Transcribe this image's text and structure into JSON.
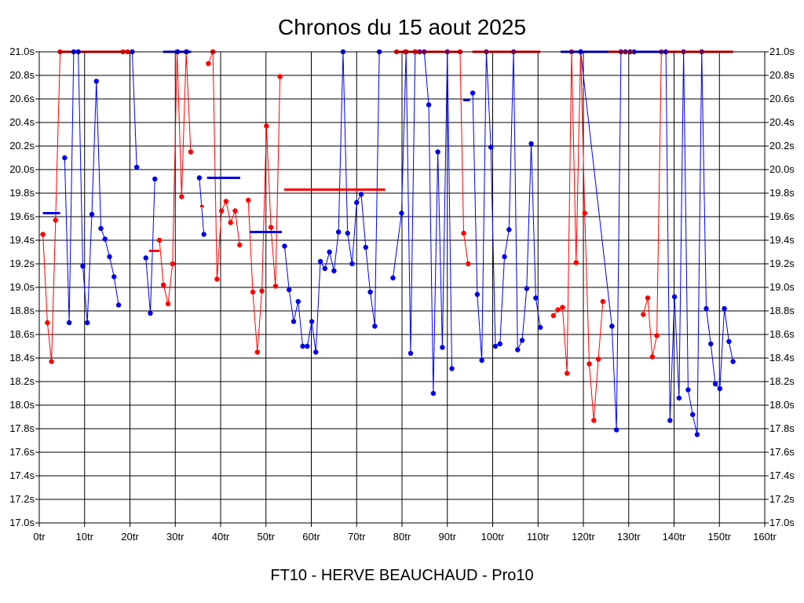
{
  "chart_data": {
    "type": "line",
    "title": "Chronos du 15 aout 2025",
    "xlabel": "FT10 - HERVE BEAUCHAUD - Pro10",
    "ylabel": "",
    "xlim": [
      0,
      160
    ],
    "ylim": [
      17.0,
      21.0
    ],
    "x_ticks": [
      {
        "value": 0,
        "label": "0tr"
      },
      {
        "value": 10,
        "label": "10tr"
      },
      {
        "value": 20,
        "label": "20tr"
      },
      {
        "value": 30,
        "label": "30tr"
      },
      {
        "value": 40,
        "label": "40tr"
      },
      {
        "value": 50,
        "label": "50tr"
      },
      {
        "value": 60,
        "label": "60tr"
      },
      {
        "value": 70,
        "label": "70tr"
      },
      {
        "value": 80,
        "label": "80tr"
      },
      {
        "value": 90,
        "label": "90tr"
      },
      {
        "value": 100,
        "label": "100tr"
      },
      {
        "value": 110,
        "label": "110tr"
      },
      {
        "value": 120,
        "label": "120tr"
      },
      {
        "value": 130,
        "label": "130tr"
      },
      {
        "value": 140,
        "label": "140tr"
      },
      {
        "value": 150,
        "label": "150tr"
      },
      {
        "value": 160,
        "label": "160tr"
      }
    ],
    "y_ticks": [
      {
        "value": 17.0,
        "label": "17.0s"
      },
      {
        "value": 17.2,
        "label": "17.2s"
      },
      {
        "value": 17.4,
        "label": "17.4s"
      },
      {
        "value": 17.6,
        "label": "17.6s"
      },
      {
        "value": 17.8,
        "label": "17.8s"
      },
      {
        "value": 18.0,
        "label": "18.0s"
      },
      {
        "value": 18.2,
        "label": "18.2s"
      },
      {
        "value": 18.4,
        "label": "18.4s"
      },
      {
        "value": 18.6,
        "label": "18.6s"
      },
      {
        "value": 18.8,
        "label": "18.8s"
      },
      {
        "value": 19.0,
        "label": "19.0s"
      },
      {
        "value": 19.2,
        "label": "19.2s"
      },
      {
        "value": 19.4,
        "label": "19.4s"
      },
      {
        "value": 19.6,
        "label": "19.6s"
      },
      {
        "value": 19.8,
        "label": "19.8s"
      },
      {
        "value": 20.0,
        "label": "20.0s"
      },
      {
        "value": 20.2,
        "label": "20.2s"
      },
      {
        "value": 20.4,
        "label": "20.4s"
      },
      {
        "value": 20.6,
        "label": "20.6s"
      },
      {
        "value": 20.8,
        "label": "20.8s"
      },
      {
        "value": 21.0,
        "label": "21.0s"
      }
    ],
    "grid": true,
    "colors": {
      "red": "#ff0000",
      "blue": "#0000ee",
      "grid": "#000000"
    },
    "series": [
      {
        "color": "red",
        "points": [
          [
            0.8,
            19.45
          ],
          [
            1.8,
            18.7
          ],
          [
            2.7,
            18.37
          ],
          [
            3.6,
            19.57
          ],
          [
            4.6,
            21.0
          ]
        ],
        "avg": [
          [
            4.8,
            18.6,
            21.0
          ]
        ]
      },
      {
        "color": "blue",
        "points": [
          [
            5.6,
            20.1
          ],
          [
            6.6,
            18.7
          ],
          [
            7.6,
            21.0
          ],
          [
            8.6,
            21.0
          ],
          [
            9.6,
            19.18
          ],
          [
            10.6,
            18.7
          ],
          [
            11.6,
            19.62
          ],
          [
            12.6,
            20.75
          ],
          [
            13.6,
            19.5
          ],
          [
            14.5,
            19.41
          ],
          [
            15.5,
            19.26
          ],
          [
            16.5,
            19.09
          ],
          [
            17.5,
            18.85
          ]
        ],
        "avg": [
          [
            0.8,
            4.6,
            19.63
          ]
        ]
      },
      {
        "color": "red",
        "points": [
          [
            18.5,
            21.0
          ],
          [
            19.5,
            21.0
          ]
        ],
        "avg": []
      },
      {
        "color": "blue",
        "points": [
          [
            20.5,
            21.0
          ],
          [
            21.5,
            20.02
          ]
        ],
        "avg": []
      },
      {
        "color": "blue",
        "points": [
          [
            23.5,
            19.25
          ],
          [
            24.5,
            18.78
          ],
          [
            25.5,
            19.92
          ]
        ],
        "avg": []
      },
      {
        "color": "red",
        "points": [
          [
            26.5,
            19.4
          ],
          [
            27.4,
            19.02
          ],
          [
            28.4,
            18.86
          ],
          [
            29.4,
            19.2
          ],
          [
            30.4,
            21.0
          ],
          [
            31.4,
            19.77
          ],
          [
            32.4,
            21.0
          ],
          [
            33.4,
            20.15
          ]
        ],
        "avg": [
          [
            24.2,
            26.5,
            19.31
          ]
        ]
      },
      {
        "color": "blue",
        "points": [
          [
            30.5,
            21.0
          ],
          [
            32.5,
            21.0
          ]
        ],
        "avg": [
          [
            27.3,
            33.5,
            21.0
          ]
        ]
      },
      {
        "color": "blue",
        "points": [
          [
            35.3,
            19.93
          ],
          [
            36.3,
            19.45
          ]
        ],
        "avg": []
      },
      {
        "color": "red",
        "points": [
          [
            37.3,
            20.9
          ],
          [
            38.3,
            21.0
          ],
          [
            39.2,
            19.07
          ],
          [
            40.2,
            19.65
          ],
          [
            41.2,
            19.73
          ],
          [
            42.2,
            19.55
          ],
          [
            43.2,
            19.65
          ],
          [
            44.2,
            19.36
          ]
        ],
        "avg": [
          [
            35.5,
            36.3,
            19.69
          ]
        ]
      },
      {
        "color": "blue",
        "points": [],
        "avg": [
          [
            37.0,
            44.3,
            19.93
          ]
        ]
      },
      {
        "color": "red",
        "points": [
          [
            46.1,
            19.74
          ],
          [
            47.1,
            18.96
          ],
          [
            48.1,
            18.45
          ],
          [
            49.1,
            18.97
          ],
          [
            50.1,
            20.37
          ],
          [
            51.1,
            19.51
          ],
          [
            52.1,
            19.01
          ],
          [
            53.1,
            20.79
          ]
        ],
        "avg": []
      },
      {
        "color": "blue",
        "points": [
          [
            54.1,
            19.35
          ],
          [
            55.1,
            18.98
          ],
          [
            56.1,
            18.71
          ],
          [
            57.1,
            18.88
          ],
          [
            58.1,
            18.5
          ],
          [
            59.1,
            18.5
          ],
          [
            60.1,
            18.71
          ],
          [
            61.0,
            18.45
          ],
          [
            62.0,
            19.22
          ],
          [
            63.0,
            19.16
          ],
          [
            64.0,
            19.3
          ],
          [
            65.0,
            19.14
          ],
          [
            66.0,
            19.47
          ],
          [
            67.0,
            21.0
          ],
          [
            68.0,
            19.46
          ],
          [
            69.0,
            19.2
          ],
          [
            70.0,
            19.72
          ],
          [
            71.0,
            19.79
          ],
          [
            72.0,
            19.34
          ],
          [
            73.0,
            18.96
          ],
          [
            74.0,
            18.67
          ],
          [
            75.0,
            21.0
          ]
        ],
        "avg": [
          [
            46.4,
            53.5,
            19.47
          ]
        ]
      },
      {
        "color": "red",
        "points": [],
        "avg": [
          [
            54.0,
            76.3,
            19.83
          ]
        ]
      },
      {
        "color": "blue",
        "points": [
          [
            78.0,
            19.08
          ],
          [
            79.9,
            19.63
          ],
          [
            80.9,
            21.0
          ],
          [
            81.9,
            18.44
          ],
          [
            82.9,
            21.0
          ],
          [
            83.9,
            21.0
          ],
          [
            84.9,
            21.0
          ],
          [
            85.9,
            20.55
          ],
          [
            86.9,
            18.1
          ],
          [
            87.9,
            20.15
          ],
          [
            88.9,
            18.49
          ],
          [
            90.0,
            21.0
          ],
          [
            91.0,
            18.31
          ]
        ],
        "avg": []
      },
      {
        "color": "red",
        "points": [
          [
            78.8,
            21.0
          ],
          [
            80.7,
            21.0
          ],
          [
            83.0,
            21.0
          ],
          [
            92.8,
            21.0
          ],
          [
            93.6,
            19.46
          ],
          [
            94.6,
            19.2
          ]
        ],
        "avg": [
          [
            78.5,
            93.0,
            21.0
          ]
        ]
      },
      {
        "color": "blue",
        "points": [
          [
            95.6,
            20.65
          ],
          [
            96.6,
            18.94
          ],
          [
            97.6,
            18.38
          ],
          [
            98.6,
            21.0
          ],
          [
            99.6,
            20.19
          ],
          [
            100.6,
            18.5
          ],
          [
            101.6,
            18.52
          ],
          [
            102.6,
            19.26
          ],
          [
            103.6,
            19.49
          ],
          [
            104.6,
            21.0
          ],
          [
            105.5,
            18.47
          ],
          [
            106.5,
            18.55
          ],
          [
            107.5,
            18.99
          ],
          [
            108.5,
            20.22
          ],
          [
            109.5,
            18.91
          ],
          [
            110.5,
            18.66
          ]
        ],
        "avg": [
          [
            93.5,
            95.0,
            20.59
          ]
        ]
      },
      {
        "color": "red",
        "points": [],
        "avg": [
          [
            95.5,
            110.5,
            21.0
          ]
        ]
      },
      {
        "color": "red",
        "points": [
          [
            113.4,
            18.76
          ],
          [
            114.4,
            18.81
          ],
          [
            115.4,
            18.83
          ],
          [
            116.4,
            18.27
          ],
          [
            117.4,
            21.0
          ],
          [
            118.4,
            19.21
          ],
          [
            119.4,
            21.0
          ],
          [
            120.3,
            19.63
          ],
          [
            121.3,
            18.35
          ],
          [
            122.3,
            17.87
          ],
          [
            123.3,
            18.39
          ],
          [
            124.3,
            18.88
          ]
        ],
        "avg": [
          [
            119.9,
            120.1,
            20.7
          ]
        ]
      },
      {
        "color": "blue",
        "points": [
          [
            119.4,
            21.0
          ],
          [
            126.3,
            18.67
          ],
          [
            127.3,
            17.79
          ],
          [
            128.3,
            21.0
          ],
          [
            129.3,
            21.0
          ],
          [
            130.3,
            21.0
          ],
          [
            131.2,
            21.0
          ]
        ],
        "avg": [
          [
            115.0,
            131.0,
            21.0
          ]
        ]
      },
      {
        "color": "red",
        "points": [
          [
            133.2,
            18.77
          ],
          [
            134.2,
            18.91
          ],
          [
            135.2,
            18.41
          ],
          [
            136.2,
            18.59
          ],
          [
            137.2,
            21.0
          ]
        ],
        "avg": []
      },
      {
        "color": "blue",
        "points": [
          [
            138.2,
            21.0
          ],
          [
            139.1,
            17.87
          ],
          [
            140.1,
            18.92
          ],
          [
            141.1,
            18.06
          ],
          [
            142.1,
            21.0
          ],
          [
            143.1,
            18.13
          ],
          [
            144.1,
            17.92
          ],
          [
            145.1,
            17.75
          ],
          [
            146.1,
            21.0
          ],
          [
            147.1,
            18.82
          ],
          [
            148.1,
            18.52
          ],
          [
            149.1,
            18.18
          ],
          [
            150.1,
            18.14
          ],
          [
            151.1,
            18.82
          ],
          [
            152.1,
            18.54
          ],
          [
            153.0,
            18.37
          ]
        ],
        "avg": [
          [
            131.5,
            138.2,
            21.0
          ]
        ]
      },
      {
        "color": "red",
        "points": [],
        "avg": [
          [
            125.5,
            131.0,
            21.0
          ],
          [
            138.3,
            153.0,
            21.0
          ]
        ]
      }
    ]
  }
}
